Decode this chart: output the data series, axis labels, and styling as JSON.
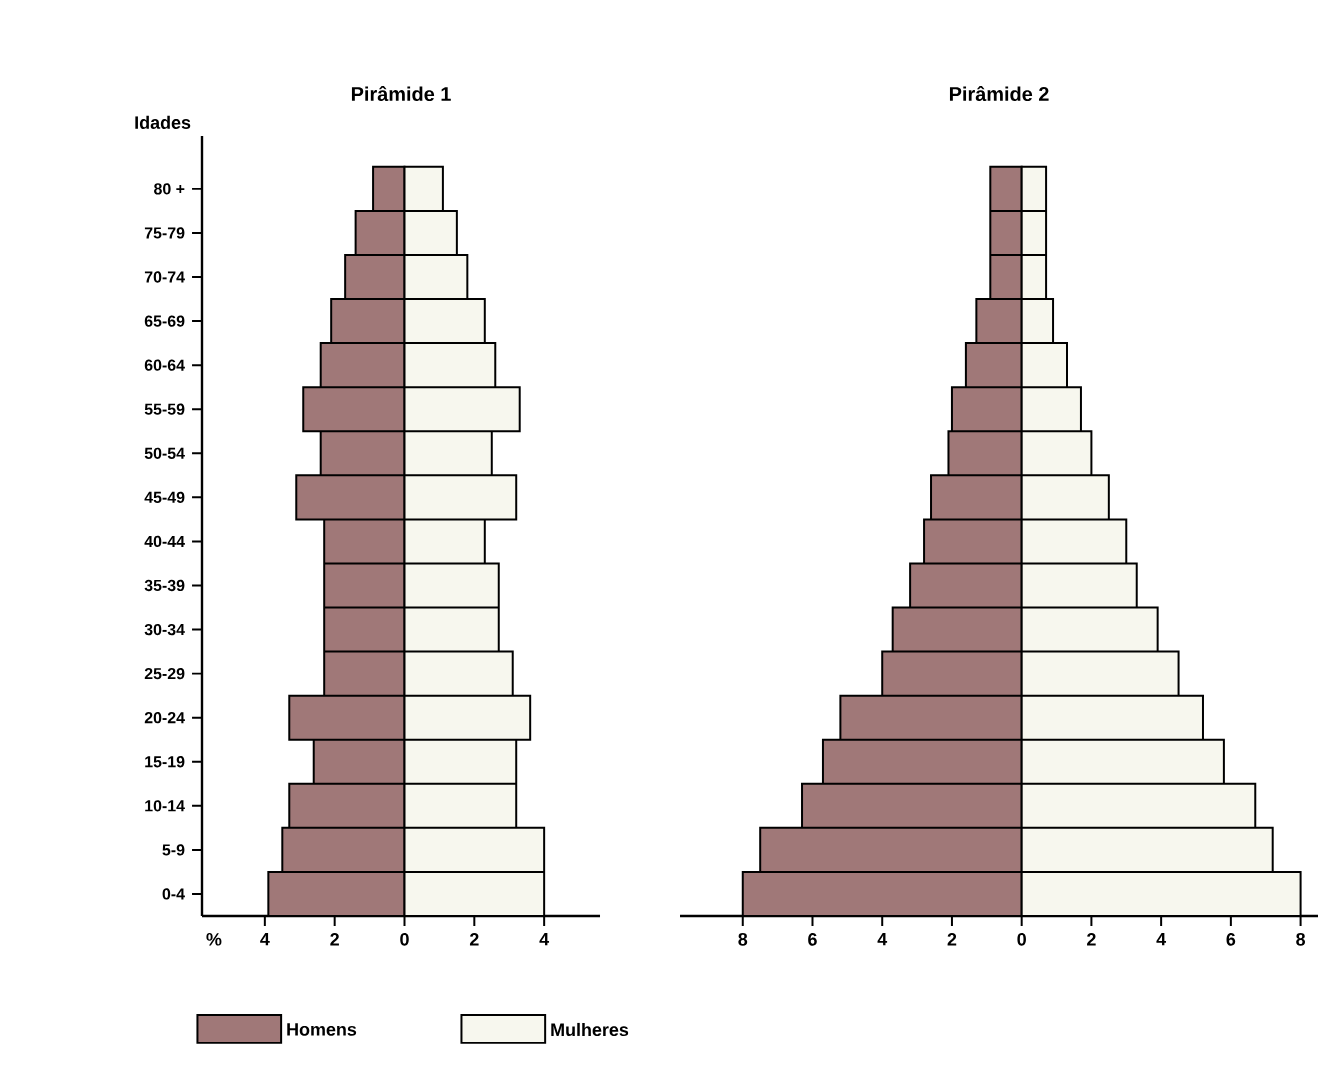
{
  "chart_data": [
    {
      "type": "bar",
      "orientation": "horizontal",
      "stacked": true,
      "title": "Pirâmide 1",
      "xlabel": "%",
      "ylabel": "Idades",
      "legend": "bottom",
      "categories": [
        "80 +",
        "75-79",
        "70-74",
        "65-69",
        "60-64",
        "55-59",
        "50-54",
        "45-49",
        "40-44",
        "35-39",
        "30-34",
        "25-29",
        "20-24",
        "15-19",
        "10-14",
        "5-9",
        "0-4"
      ],
      "series": [
        {
          "name": "Homens",
          "color": "#a07878",
          "values": [
            -0.9,
            -1.4,
            -1.7,
            -2.1,
            -2.4,
            -2.9,
            -2.4,
            -3.1,
            -2.3,
            -2.3,
            -2.3,
            -2.3,
            -3.3,
            -2.6,
            -3.3,
            -3.5,
            -3.9
          ]
        },
        {
          "name": "Mulheres",
          "color": "#f7f7ee",
          "values": [
            1.1,
            1.5,
            1.8,
            2.3,
            2.6,
            3.3,
            2.5,
            3.2,
            2.3,
            2.7,
            2.7,
            3.1,
            3.6,
            3.2,
            3.2,
            4.0,
            4.0
          ]
        }
      ],
      "xlim": [
        -5.8,
        5.6
      ],
      "xticks": [
        {
          "value": -4,
          "label": "4"
        },
        {
          "value": -2,
          "label": "2"
        },
        0,
        2,
        4
      ]
    },
    {
      "type": "bar",
      "orientation": "horizontal",
      "stacked": true,
      "title": "Pirâmide 2",
      "tick_labels": "x",
      "categories": [
        null,
        null,
        null,
        null,
        null,
        null,
        null,
        null,
        null,
        null,
        null,
        null,
        null,
        null,
        null,
        null,
        null
      ],
      "series": [
        {
          "color": "#a07878",
          "values": [
            -0.9,
            -0.9,
            -0.9,
            -1.3,
            -1.6,
            -2.0,
            -2.1,
            -2.6,
            -2.8,
            -3.2,
            -3.7,
            -4.0,
            -5.2,
            -5.7,
            -6.3,
            -7.5,
            -8.0
          ]
        },
        {
          "color": "#f7f7ee",
          "values": [
            0.7,
            0.7,
            0.7,
            0.9,
            1.3,
            1.7,
            2.0,
            2.5,
            3.0,
            3.3,
            3.9,
            4.5,
            5.2,
            5.8,
            6.7,
            7.2,
            8.0
          ]
        }
      ],
      "xlim": [
        -9.8,
        8.5
      ],
      "xticks": [
        {
          "value": -8,
          "label": "8"
        },
        {
          "value": -6,
          "label": "6"
        },
        {
          "value": -4,
          "label": "4"
        },
        {
          "value": -2,
          "label": "2"
        },
        0,
        2,
        4,
        6,
        8
      ]
    }
  ]
}
